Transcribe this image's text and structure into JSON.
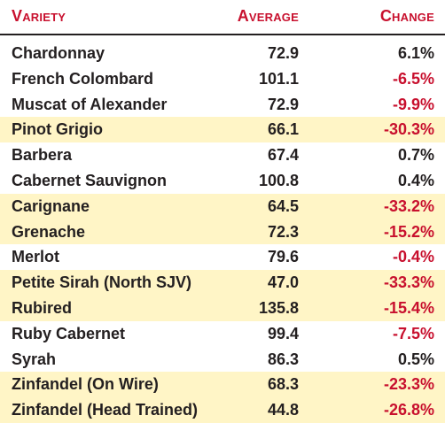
{
  "header": {
    "variety": "Variety",
    "average": "Average",
    "change": "Change"
  },
  "colors": {
    "header_text": "#c8102e",
    "negative_text": "#c8102e",
    "highlight_row": "#fff5c6",
    "body_text": "#231f20"
  },
  "rows": [
    {
      "variety": "Chardonnay",
      "average": "72.9",
      "change": "6.1%",
      "negative": false,
      "highlight": false
    },
    {
      "variety": "French Colombard",
      "average": "101.1",
      "change": "-6.5%",
      "negative": true,
      "highlight": false
    },
    {
      "variety": "Muscat of Alexander",
      "average": "72.9",
      "change": "-9.9%",
      "negative": true,
      "highlight": false
    },
    {
      "variety": "Pinot Grigio",
      "average": "66.1",
      "change": "-30.3%",
      "negative": true,
      "highlight": true
    },
    {
      "variety": "Barbera",
      "average": "67.4",
      "change": "0.7%",
      "negative": false,
      "highlight": false
    },
    {
      "variety": "Cabernet Sauvignon",
      "average": "100.8",
      "change": "0.4%",
      "negative": false,
      "highlight": false
    },
    {
      "variety": "Carignane",
      "average": "64.5",
      "change": "-33.2%",
      "negative": true,
      "highlight": true
    },
    {
      "variety": "Grenache",
      "average": "72.3",
      "change": "-15.2%",
      "negative": true,
      "highlight": true
    },
    {
      "variety": "Merlot",
      "average": "79.6",
      "change": "-0.4%",
      "negative": true,
      "highlight": false
    },
    {
      "variety": "Petite Sirah (North SJV)",
      "average": "47.0",
      "change": "-33.3%",
      "negative": true,
      "highlight": true
    },
    {
      "variety": "Rubired",
      "average": "135.8",
      "change": "-15.4%",
      "negative": true,
      "highlight": true
    },
    {
      "variety": "Ruby Cabernet",
      "average": "99.4",
      "change": "-7.5%",
      "negative": true,
      "highlight": false
    },
    {
      "variety": "Syrah",
      "average": "86.3",
      "change": "0.5%",
      "negative": false,
      "highlight": false
    },
    {
      "variety": "Zinfandel (On Wire)",
      "average": "68.3",
      "change": "-23.3%",
      "negative": true,
      "highlight": true
    },
    {
      "variety": "Zinfandel (Head Trained)",
      "average": "44.8",
      "change": "-26.8%",
      "negative": true,
      "highlight": true
    }
  ]
}
